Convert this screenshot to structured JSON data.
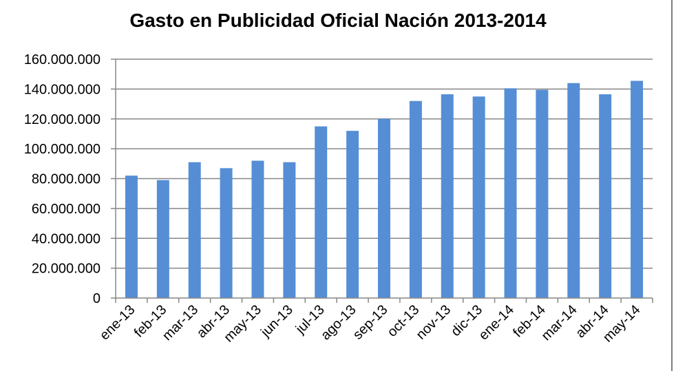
{
  "chart_data": {
    "type": "bar",
    "title": "Gasto en Publicidad Oficial Nación 2013-2014",
    "xlabel": "",
    "ylabel": "",
    "categories": [
      "ene-13",
      "feb-13",
      "mar-13",
      "abr-13",
      "may-13",
      "jun-13",
      "jul-13",
      "ago-13",
      "sep-13",
      "oct-13",
      "nov-13",
      "dic-13",
      "ene-14",
      "feb-14",
      "mar-14",
      "abr-14",
      "may-14"
    ],
    "values": [
      82000000,
      79000000,
      91000000,
      87000000,
      92000000,
      91000000,
      115000000,
      112000000,
      120000000,
      132000000,
      136500000,
      135000000,
      140500000,
      139500000,
      144000000,
      136500000,
      145500000
    ],
    "ylim": [
      0,
      160000000
    ],
    "yticks": [
      0,
      20000000,
      40000000,
      60000000,
      80000000,
      100000000,
      120000000,
      140000000,
      160000000
    ],
    "ytick_labels": [
      "0",
      "20.000.000",
      "40.000.000",
      "60.000.000",
      "80.000.000",
      "100.000.000",
      "120.000.000",
      "140.000.000",
      "160.000.000"
    ],
    "grid": true,
    "legend": "none",
    "colors": {
      "bar": "#558ed5",
      "grid": "#868686",
      "axis": "#868686",
      "text": "#000000"
    }
  }
}
